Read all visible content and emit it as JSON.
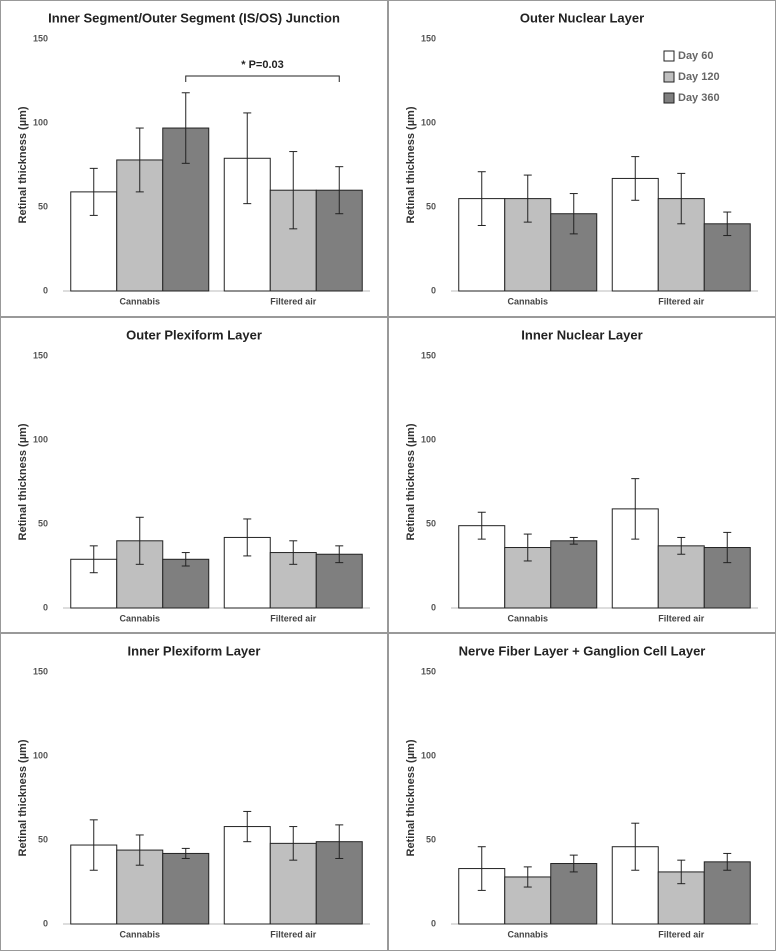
{
  "chart_data": [
    {
      "type": "bar",
      "title": "Inner Segment/Outer Segment (IS/OS) Junction",
      "y_label": "Retinal thickness (µm)",
      "categories": [
        "Cannabis",
        "Filtered air"
      ],
      "ylim": [
        0,
        150
      ],
      "yticks": [
        0,
        50,
        100,
        150
      ],
      "annotation": "* P=0.03",
      "series": [
        {
          "color": "#ffffff",
          "values": [
            59,
            79
          ],
          "errors": [
            14,
            27
          ]
        },
        {
          "color": "#bfbfbf",
          "values": [
            78,
            60
          ],
          "errors": [
            19,
            23
          ]
        },
        {
          "color": "#7f7f7f",
          "values": [
            97,
            60
          ],
          "errors": [
            21,
            14
          ]
        }
      ]
    },
    {
      "type": "bar",
      "title": "Outer Nuclear Layer",
      "y_label": "Retinal thickness (µm)",
      "categories": [
        "Cannabis",
        "Filtered air"
      ],
      "ylim": [
        0,
        150
      ],
      "yticks": [
        0,
        50,
        100,
        150
      ],
      "legend": "upper right",
      "series": [
        {
          "name": "Day 60",
          "color": "#ffffff",
          "values": [
            55,
            67
          ],
          "errors": [
            16,
            13
          ]
        },
        {
          "name": "Day 120",
          "color": "#bfbfbf",
          "values": [
            55,
            55
          ],
          "errors": [
            14,
            15
          ]
        },
        {
          "name": "Day 360",
          "color": "#7f7f7f",
          "values": [
            46,
            40
          ],
          "errors": [
            12,
            7
          ]
        }
      ]
    },
    {
      "type": "bar",
      "title": "Outer Plexiform Layer",
      "y_label": "Retinal thickness (µm)",
      "categories": [
        "Cannabis",
        "Filtered air"
      ],
      "ylim": [
        0,
        150
      ],
      "yticks": [
        0,
        50,
        100,
        150
      ],
      "series": [
        {
          "color": "#ffffff",
          "values": [
            29,
            42
          ],
          "errors": [
            8,
            11
          ]
        },
        {
          "color": "#bfbfbf",
          "values": [
            40,
            33
          ],
          "errors": [
            14,
            7
          ]
        },
        {
          "color": "#7f7f7f",
          "values": [
            29,
            32
          ],
          "errors": [
            4,
            5
          ]
        }
      ]
    },
    {
      "type": "bar",
      "title": "Inner Nuclear Layer",
      "y_label": "Retinal thickness (µm)",
      "categories": [
        "Cannabis",
        "Filtered air"
      ],
      "ylim": [
        0,
        150
      ],
      "yticks": [
        0,
        50,
        100,
        150
      ],
      "series": [
        {
          "color": "#ffffff",
          "values": [
            49,
            59
          ],
          "errors": [
            8,
            18
          ]
        },
        {
          "color": "#bfbfbf",
          "values": [
            36,
            37
          ],
          "errors": [
            8,
            5
          ]
        },
        {
          "color": "#7f7f7f",
          "values": [
            40,
            36
          ],
          "errors": [
            2,
            9
          ]
        }
      ]
    },
    {
      "type": "bar",
      "title": "Inner Plexiform Layer",
      "y_label": "Retinal thickness (µm)",
      "categories": [
        "Cannabis",
        "Filtered air"
      ],
      "ylim": [
        0,
        150
      ],
      "yticks": [
        0,
        50,
        100,
        150
      ],
      "series": [
        {
          "color": "#ffffff",
          "values": [
            47,
            58
          ],
          "errors": [
            15,
            9
          ]
        },
        {
          "color": "#bfbfbf",
          "values": [
            44,
            48
          ],
          "errors": [
            9,
            10
          ]
        },
        {
          "color": "#7f7f7f",
          "values": [
            42,
            49
          ],
          "errors": [
            3,
            10
          ]
        }
      ]
    },
    {
      "type": "bar",
      "title": "Nerve Fiber Layer + Ganglion Cell Layer",
      "y_label": "Retinal thickness (µm)",
      "categories": [
        "Cannabis",
        "Filtered air"
      ],
      "ylim": [
        0,
        150
      ],
      "yticks": [
        0,
        50,
        100,
        150
      ],
      "series": [
        {
          "color": "#ffffff",
          "values": [
            33,
            46
          ],
          "errors": [
            13,
            14
          ]
        },
        {
          "color": "#bfbfbf",
          "values": [
            28,
            31
          ],
          "errors": [
            6,
            7
          ]
        },
        {
          "color": "#7f7f7f",
          "values": [
            36,
            37
          ],
          "errors": [
            5,
            5
          ]
        }
      ]
    }
  ]
}
